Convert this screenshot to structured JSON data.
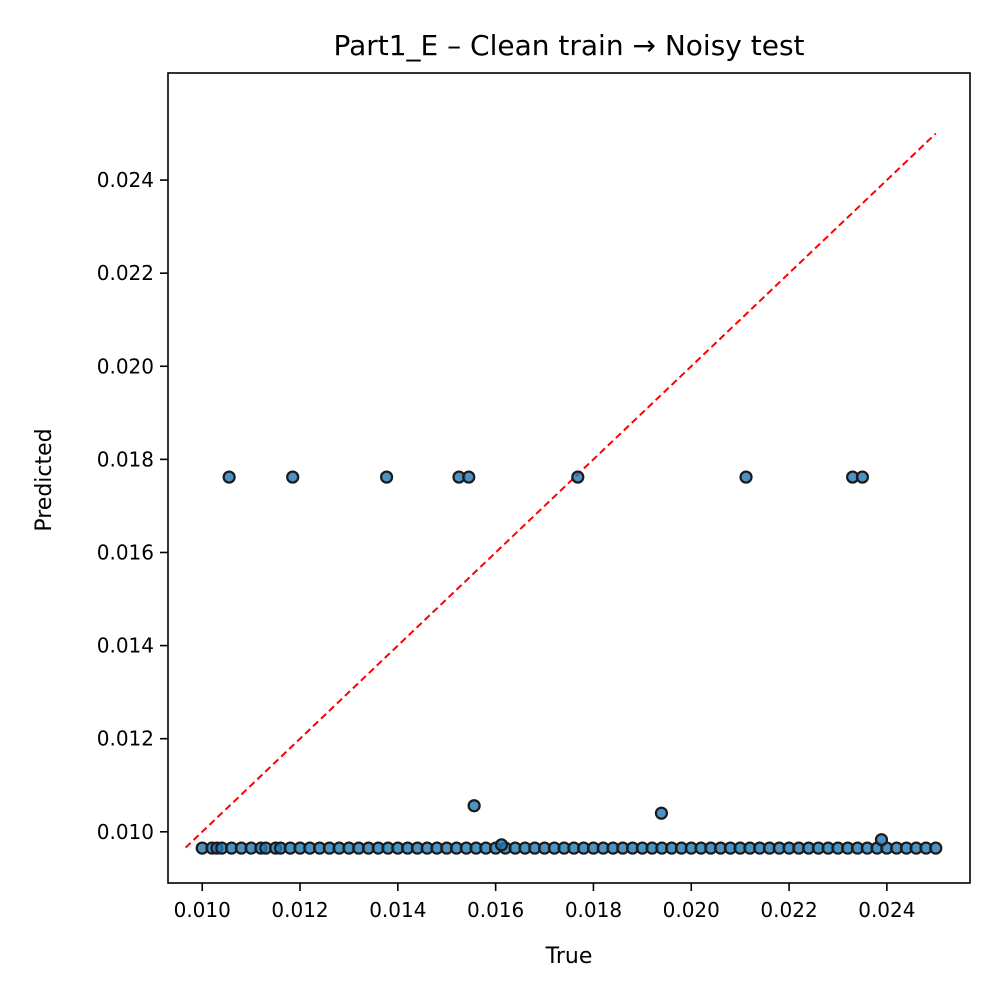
{
  "chart_data": {
    "type": "scatter",
    "title": "Part1_E – Clean train → Noisy test",
    "xlabel": "True",
    "ylabel": "Predicted",
    "xlim": [
      0.0093,
      0.0257
    ],
    "ylim": [
      0.0089,
      0.0263
    ],
    "xticks": [
      "0.010",
      "0.012",
      "0.014",
      "0.016",
      "0.018",
      "0.020",
      "0.022",
      "0.024"
    ],
    "yticks": [
      "0.010",
      "0.012",
      "0.014",
      "0.016",
      "0.018",
      "0.020",
      "0.022",
      "0.024"
    ],
    "xtick_values": [
      0.01,
      0.012,
      0.014,
      0.016,
      0.018,
      0.02,
      0.022,
      0.024
    ],
    "ytick_values": [
      0.01,
      0.012,
      0.014,
      0.016,
      0.018,
      0.02,
      0.022,
      0.024
    ],
    "grid": false,
    "point_color": "#1f77b4",
    "edge_color": "#1a1a1a",
    "reference_line": {
      "color": "#ff0000",
      "style": "dashed",
      "from": [
        0.00966,
        0.00966
      ],
      "to": [
        0.025,
        0.025
      ]
    },
    "baseline_prediction": 0.00965,
    "baseline_x": [
      0.01,
      0.0102,
      0.0103,
      0.0104,
      0.0106,
      0.0108,
      0.011,
      0.0112,
      0.0113,
      0.0115,
      0.0116,
      0.0118,
      0.012,
      0.0122,
      0.0124,
      0.0126,
      0.0128,
      0.013,
      0.0132,
      0.0134,
      0.0136,
      0.0138,
      0.014,
      0.0142,
      0.0144,
      0.0146,
      0.0148,
      0.015,
      0.0152,
      0.0154,
      0.0156,
      0.0158,
      0.016,
      0.0162,
      0.0164,
      0.0166,
      0.0168,
      0.017,
      0.0172,
      0.0174,
      0.0176,
      0.0178,
      0.018,
      0.0182,
      0.0184,
      0.0186,
      0.0188,
      0.019,
      0.0192,
      0.0194,
      0.0196,
      0.0198,
      0.02,
      0.0202,
      0.0204,
      0.0206,
      0.0208,
      0.021,
      0.0212,
      0.0214,
      0.0216,
      0.0218,
      0.022,
      0.0222,
      0.0224,
      0.0226,
      0.0228,
      0.023,
      0.0232,
      0.0234,
      0.0236,
      0.0238,
      0.024,
      0.0242,
      0.0244,
      0.0246,
      0.0248,
      0.025
    ],
    "outliers": [
      [
        0.01055,
        0.01762
      ],
      [
        0.01185,
        0.01762
      ],
      [
        0.01377,
        0.01762
      ],
      [
        0.01525,
        0.01762
      ],
      [
        0.01545,
        0.01762
      ],
      [
        0.01768,
        0.01762
      ],
      [
        0.02112,
        0.01762
      ],
      [
        0.0233,
        0.01762
      ],
      [
        0.0235,
        0.01762
      ],
      [
        0.01556,
        0.01056
      ],
      [
        0.01939,
        0.0104
      ],
      [
        0.02389,
        0.00983
      ],
      [
        0.01612,
        0.00972
      ]
    ]
  }
}
